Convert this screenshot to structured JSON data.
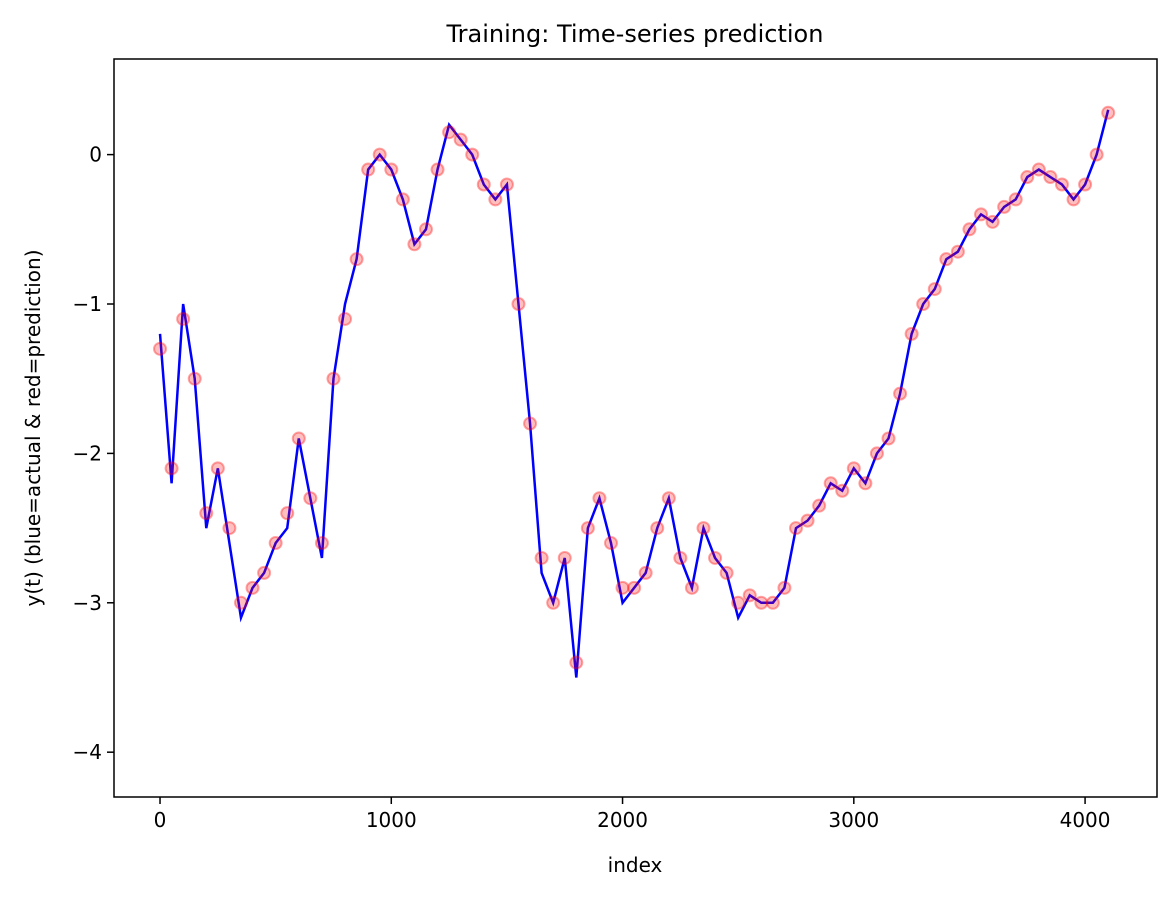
{
  "chart_data": {
    "type": "line_scatter",
    "title": "Training: Time-series prediction",
    "x_label": "index",
    "y_label": "y(t) (blue=actual & red=prediction)",
    "x": [
      0,
      50,
      100,
      150,
      200,
      250,
      300,
      350,
      400,
      450,
      500,
      550,
      600,
      650,
      700,
      750,
      800,
      850,
      900,
      950,
      1000,
      1050,
      1100,
      1150,
      1200,
      1250,
      1300,
      1350,
      1400,
      1450,
      1500,
      1550,
      1600,
      1650,
      1700,
      1750,
      1800,
      1850,
      1900,
      1950,
      2000,
      2050,
      2100,
      2150,
      2200,
      2250,
      2300,
      2350,
      2400,
      2450,
      2500,
      2550,
      2600,
      2650,
      2700,
      2750,
      2800,
      2850,
      2900,
      2950,
      3000,
      3050,
      3100,
      3150,
      3200,
      3250,
      3300,
      3350,
      3400,
      3450,
      3500,
      3550,
      3600,
      3650,
      3700,
      3750,
      3800,
      3850,
      3900,
      3950,
      4000,
      4050,
      4100
    ],
    "series": [
      {
        "name": "actual",
        "color": "#0000ff",
        "style": "line",
        "values": [
          -1.2,
          -2.2,
          -1.0,
          -1.5,
          -2.5,
          -2.1,
          -2.6,
          -3.1,
          -2.9,
          -2.8,
          -2.6,
          -2.5,
          -1.9,
          -2.3,
          -2.7,
          -1.5,
          -1.0,
          -0.7,
          -0.1,
          0.0,
          -0.1,
          -0.3,
          -0.6,
          -0.5,
          -0.1,
          0.2,
          0.1,
          0.0,
          -0.2,
          -0.3,
          -0.2,
          -1.0,
          -1.8,
          -2.8,
          -3.0,
          -2.7,
          -3.5,
          -2.5,
          -2.3,
          -2.6,
          -3.0,
          -2.9,
          -2.8,
          -2.5,
          -2.3,
          -2.7,
          -2.9,
          -2.5,
          -2.7,
          -2.8,
          -3.1,
          -2.95,
          -3.0,
          -3.0,
          -2.9,
          -2.5,
          -2.45,
          -2.35,
          -2.2,
          -2.25,
          -2.1,
          -2.2,
          -2.0,
          -1.9,
          -1.6,
          -1.2,
          -1.0,
          -0.9,
          -0.7,
          -0.65,
          -0.5,
          -0.4,
          -0.45,
          -0.35,
          -0.3,
          -0.15,
          -0.1,
          -0.15,
          -0.2,
          -0.3,
          -0.2,
          0.0,
          0.3
        ]
      },
      {
        "name": "prediction",
        "color": "#ff0000",
        "style": "scatter",
        "values": [
          -1.3,
          -2.1,
          -1.1,
          -1.5,
          -2.4,
          -2.1,
          -2.5,
          -3.0,
          -2.9,
          -2.8,
          -2.6,
          -2.4,
          -1.9,
          -2.3,
          -2.6,
          -1.5,
          -1.1,
          -0.7,
          -0.1,
          0.0,
          -0.1,
          -0.3,
          -0.6,
          -0.5,
          -0.1,
          0.15,
          0.1,
          0.0,
          -0.2,
          -0.3,
          -0.2,
          -1.0,
          -1.8,
          -2.7,
          -3.0,
          -2.7,
          -3.4,
          -2.5,
          -2.3,
          -2.6,
          -2.9,
          -2.9,
          -2.8,
          -2.5,
          -2.3,
          -2.7,
          -2.9,
          -2.5,
          -2.7,
          -2.8,
          -3.0,
          -2.95,
          -3.0,
          -3.0,
          -2.9,
          -2.5,
          -2.45,
          -2.35,
          -2.2,
          -2.25,
          -2.1,
          -2.2,
          -2.0,
          -1.9,
          -1.6,
          -1.2,
          -1.0,
          -0.9,
          -0.7,
          -0.65,
          -0.5,
          -0.4,
          -0.45,
          -0.35,
          -0.3,
          -0.15,
          -0.1,
          -0.15,
          -0.2,
          -0.3,
          -0.2,
          0.0,
          0.28
        ]
      }
    ],
    "xlim": [
      -199,
      4311
    ],
    "ylim": [
      -4.3,
      0.64
    ],
    "xticks": [
      0,
      1000,
      2000,
      3000,
      4000
    ],
    "yticks": [
      {
        "value": -4,
        "label": "−4"
      },
      {
        "value": -3,
        "label": "−3"
      },
      {
        "value": -2,
        "label": "−2"
      },
      {
        "value": -1,
        "label": "−1"
      },
      0
    ]
  }
}
